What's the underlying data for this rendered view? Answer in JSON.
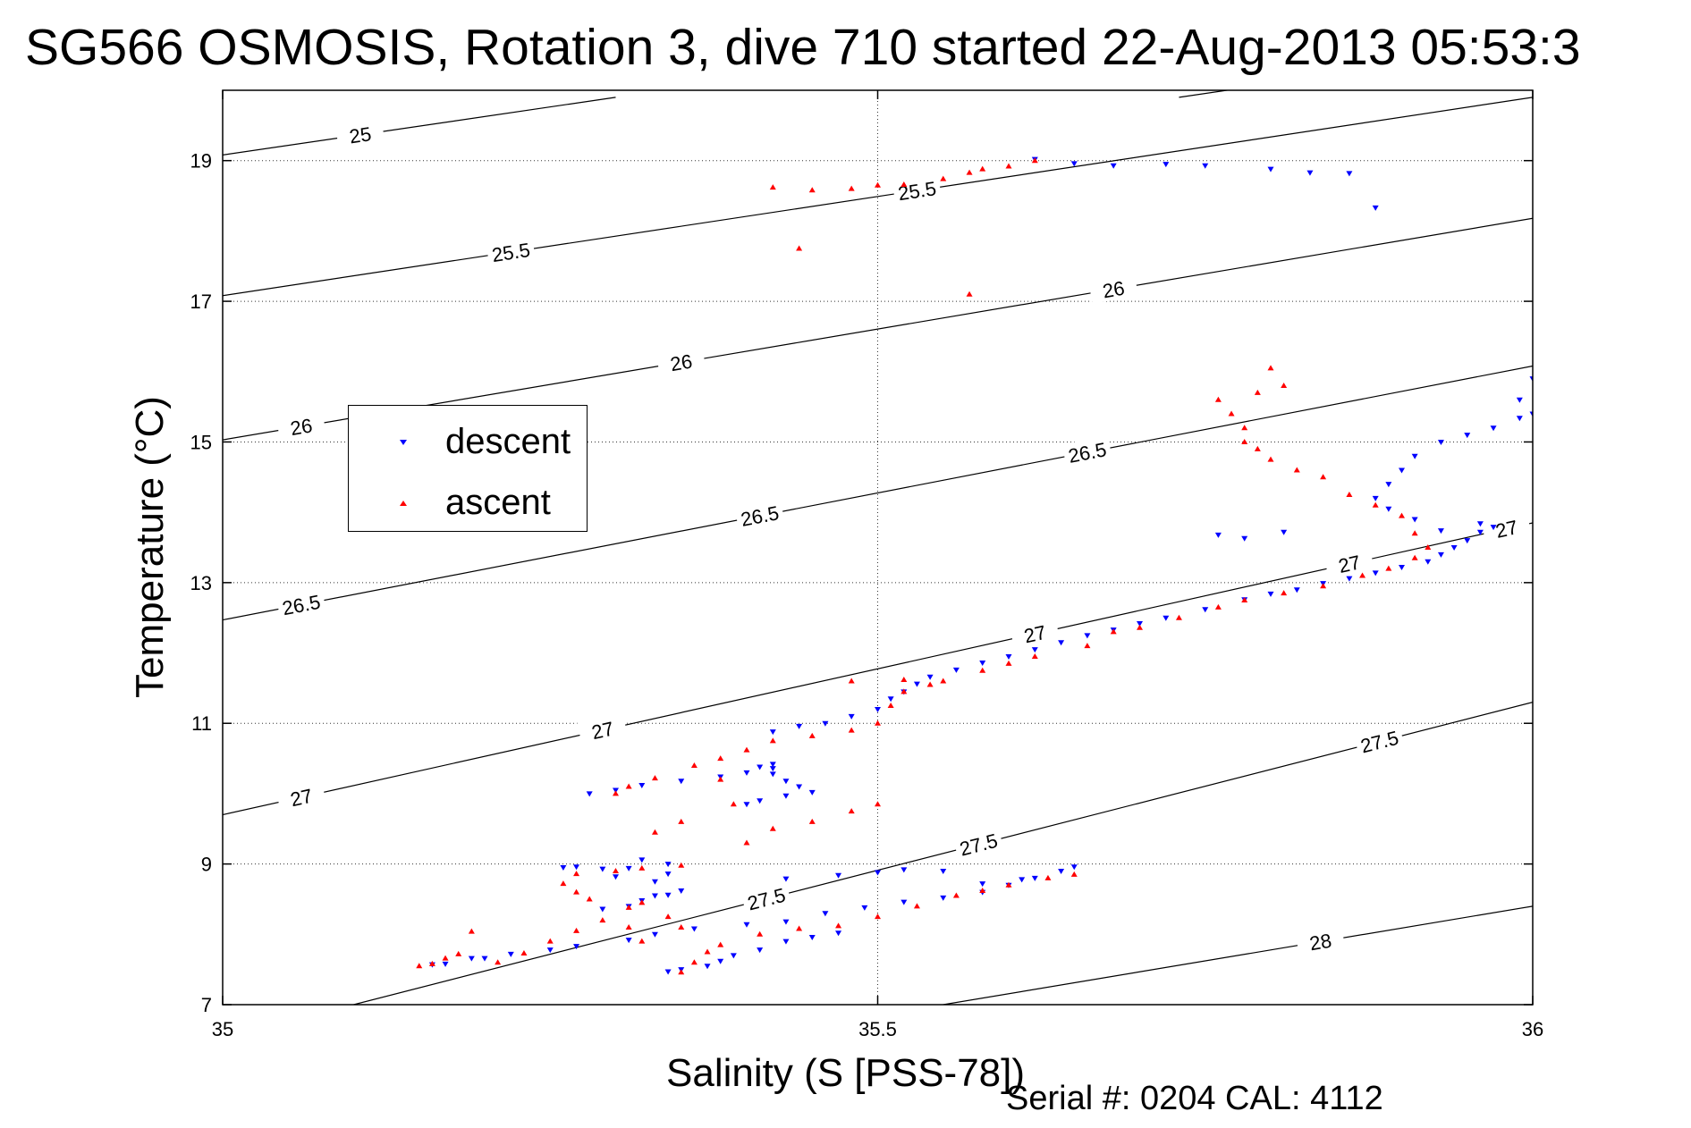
{
  "chart_data": {
    "type": "scatter",
    "title": "SG566 OSMOSIS, Rotation 3, dive 710 started 22-Aug-2013 05:53:3",
    "xlabel": "Salinity (S [PSS-78])",
    "ylabel": "Temperature (°C)",
    "xlim": [
      35,
      36
    ],
    "ylim": [
      7,
      20
    ],
    "xticks": [
      "35",
      "35.5",
      "36"
    ],
    "yticks": [
      "7",
      "9",
      "11",
      "13",
      "15",
      "17",
      "19"
    ],
    "grid": true,
    "legend_position": "left-middle",
    "footer": "Serial #: 0204  CAL: 4112",
    "contour_labels": [
      "25",
      "25.5",
      "26",
      "26.5",
      "27",
      "27.5",
      "28"
    ],
    "contours": [
      {
        "label": "25",
        "points": [
          [
            35.0,
            19.08
          ],
          [
            35.3,
            19.9
          ]
        ]
      },
      {
        "label": "25.5",
        "points": [
          [
            35.0,
            17.08
          ],
          [
            36.0,
            19.9
          ]
        ]
      },
      {
        "label": "25.5",
        "points": [
          [
            35.73,
            19.9
          ],
          [
            35.84,
            20.2
          ]
        ]
      },
      {
        "label": "26",
        "points": [
          [
            35.0,
            15.03
          ],
          [
            36.0,
            18.18
          ]
        ]
      },
      {
        "label": "26.5",
        "points": [
          [
            35.0,
            12.47
          ],
          [
            36.0,
            16.08
          ]
        ]
      },
      {
        "label": "27",
        "points": [
          [
            35.0,
            9.7
          ],
          [
            36.0,
            13.85
          ]
        ]
      },
      {
        "label": "27.5",
        "points": [
          [
            35.1,
            7.0
          ],
          [
            36.0,
            11.3
          ]
        ]
      },
      {
        "label": "28",
        "points": [
          [
            35.55,
            7.0
          ],
          [
            36.0,
            8.4
          ]
        ]
      }
    ],
    "series": [
      {
        "name": "descent",
        "color": "#0000ff",
        "marker": "triangle-down",
        "points": [
          [
            35.16,
            7.57
          ],
          [
            35.17,
            7.58
          ],
          [
            35.19,
            7.66
          ],
          [
            35.2,
            7.66
          ],
          [
            35.22,
            7.72
          ],
          [
            35.25,
            7.78
          ],
          [
            35.27,
            7.83
          ],
          [
            35.31,
            7.92
          ],
          [
            35.33,
            8.0
          ],
          [
            35.36,
            8.08
          ],
          [
            35.4,
            8.14
          ],
          [
            35.43,
            8.18
          ],
          [
            35.46,
            8.3
          ],
          [
            35.49,
            8.38
          ],
          [
            35.52,
            8.46
          ],
          [
            35.55,
            8.52
          ],
          [
            35.58,
            8.6
          ],
          [
            35.6,
            8.7
          ],
          [
            35.62,
            8.8
          ],
          [
            35.64,
            8.9
          ],
          [
            35.65,
            8.96
          ],
          [
            35.61,
            8.78
          ],
          [
            35.58,
            8.72
          ],
          [
            35.55,
            8.9
          ],
          [
            35.52,
            8.92
          ],
          [
            35.5,
            8.88
          ],
          [
            35.47,
            8.84
          ],
          [
            35.43,
            8.79
          ],
          [
            35.35,
            8.62
          ],
          [
            35.33,
            8.55
          ],
          [
            35.34,
            7.47
          ],
          [
            35.35,
            7.5
          ],
          [
            35.37,
            7.55
          ],
          [
            35.38,
            7.62
          ],
          [
            35.39,
            7.7
          ],
          [
            35.41,
            7.78
          ],
          [
            35.43,
            7.9
          ],
          [
            35.45,
            7.96
          ],
          [
            35.47,
            8.02
          ],
          [
            35.29,
            8.36
          ],
          [
            35.31,
            8.4
          ],
          [
            35.32,
            8.48
          ],
          [
            35.34,
            8.56
          ],
          [
            35.33,
            8.75
          ],
          [
            35.34,
            8.86
          ],
          [
            35.34,
            9.0
          ],
          [
            35.32,
            9.06
          ],
          [
            35.31,
            8.94
          ],
          [
            35.3,
            8.82
          ],
          [
            35.29,
            8.93
          ],
          [
            35.27,
            8.96
          ],
          [
            35.26,
            8.95
          ],
          [
            35.28,
            10.0
          ],
          [
            35.3,
            10.05
          ],
          [
            35.32,
            10.12
          ],
          [
            35.35,
            10.18
          ],
          [
            35.38,
            10.24
          ],
          [
            35.4,
            10.3
          ],
          [
            35.41,
            10.38
          ],
          [
            35.42,
            10.42
          ],
          [
            35.42,
            10.28
          ],
          [
            35.43,
            10.18
          ],
          [
            35.44,
            10.1
          ],
          [
            35.45,
            10.02
          ],
          [
            35.43,
            9.97
          ],
          [
            35.41,
            9.9
          ],
          [
            35.4,
            9.85
          ],
          [
            35.42,
            10.36
          ],
          [
            35.42,
            10.88
          ],
          [
            35.44,
            10.96
          ],
          [
            35.46,
            11.0
          ],
          [
            35.48,
            11.1
          ],
          [
            35.5,
            11.2
          ],
          [
            35.51,
            11.35
          ],
          [
            35.52,
            11.45
          ],
          [
            35.53,
            11.56
          ],
          [
            35.54,
            11.66
          ],
          [
            35.56,
            11.76
          ],
          [
            35.58,
            11.86
          ],
          [
            35.6,
            11.95
          ],
          [
            35.62,
            12.05
          ],
          [
            35.64,
            12.15
          ],
          [
            35.66,
            12.25
          ],
          [
            35.68,
            12.33
          ],
          [
            35.7,
            12.42
          ],
          [
            35.72,
            12.5
          ],
          [
            35.75,
            12.62
          ],
          [
            35.78,
            12.76
          ],
          [
            35.8,
            12.84
          ],
          [
            35.82,
            12.9
          ],
          [
            35.84,
            12.99
          ],
          [
            35.86,
            13.06
          ],
          [
            35.88,
            13.14
          ],
          [
            35.9,
            13.22
          ],
          [
            35.92,
            13.3
          ],
          [
            35.93,
            13.4
          ],
          [
            35.94,
            13.5
          ],
          [
            35.95,
            13.6
          ],
          [
            35.96,
            13.72
          ],
          [
            35.97,
            13.79
          ],
          [
            35.96,
            13.84
          ],
          [
            35.93,
            13.74
          ],
          [
            35.91,
            13.9
          ],
          [
            35.89,
            14.05
          ],
          [
            35.88,
            14.2
          ],
          [
            35.89,
            14.4
          ],
          [
            35.9,
            14.6
          ],
          [
            35.91,
            14.8
          ],
          [
            35.93,
            15.0
          ],
          [
            35.95,
            15.1
          ],
          [
            35.97,
            15.2
          ],
          [
            35.99,
            15.34
          ],
          [
            36.0,
            15.4
          ],
          [
            35.99,
            15.6
          ],
          [
            36.0,
            15.9
          ],
          [
            35.76,
            13.68
          ],
          [
            35.78,
            13.63
          ],
          [
            35.81,
            13.72
          ],
          [
            35.62,
            19.02
          ],
          [
            35.65,
            18.96
          ],
          [
            35.68,
            18.93
          ],
          [
            35.72,
            18.95
          ],
          [
            35.75,
            18.93
          ],
          [
            35.8,
            18.88
          ],
          [
            35.83,
            18.83
          ],
          [
            35.86,
            18.82
          ],
          [
            35.88,
            18.33
          ]
        ]
      },
      {
        "name": "ascent",
        "color": "#ff0000",
        "marker": "triangle-up",
        "points": [
          [
            35.15,
            7.55
          ],
          [
            35.16,
            7.58
          ],
          [
            35.17,
            7.66
          ],
          [
            35.18,
            7.72
          ],
          [
            35.19,
            8.04
          ],
          [
            35.21,
            7.6
          ],
          [
            35.23,
            7.73
          ],
          [
            35.25,
            7.9
          ],
          [
            35.27,
            8.05
          ],
          [
            35.29,
            8.2
          ],
          [
            35.31,
            8.38
          ],
          [
            35.28,
            8.5
          ],
          [
            35.27,
            8.6
          ],
          [
            35.26,
            8.72
          ],
          [
            35.27,
            8.86
          ],
          [
            35.3,
            8.9
          ],
          [
            35.32,
            8.94
          ],
          [
            35.35,
            8.98
          ],
          [
            35.32,
            8.45
          ],
          [
            35.34,
            8.25
          ],
          [
            35.35,
            8.1
          ],
          [
            35.35,
            7.46
          ],
          [
            35.36,
            7.6
          ],
          [
            35.37,
            7.75
          ],
          [
            35.38,
            7.85
          ],
          [
            35.41,
            8.0
          ],
          [
            35.44,
            8.08
          ],
          [
            35.47,
            8.12
          ],
          [
            35.5,
            8.25
          ],
          [
            35.53,
            8.4
          ],
          [
            35.56,
            8.55
          ],
          [
            35.58,
            8.62
          ],
          [
            35.6,
            8.7
          ],
          [
            35.63,
            8.8
          ],
          [
            35.65,
            8.85
          ],
          [
            35.31,
            8.1
          ],
          [
            35.32,
            7.9
          ],
          [
            35.3,
            10.0
          ],
          [
            35.31,
            10.1
          ],
          [
            35.33,
            10.22
          ],
          [
            35.36,
            10.4
          ],
          [
            35.38,
            10.5
          ],
          [
            35.4,
            10.62
          ],
          [
            35.42,
            10.75
          ],
          [
            35.45,
            10.82
          ],
          [
            35.48,
            10.9
          ],
          [
            35.5,
            11.0
          ],
          [
            35.51,
            11.25
          ],
          [
            35.52,
            11.45
          ],
          [
            35.54,
            11.55
          ],
          [
            35.58,
            11.75
          ],
          [
            35.6,
            11.85
          ],
          [
            35.62,
            11.95
          ],
          [
            35.66,
            12.1
          ],
          [
            35.68,
            12.3
          ],
          [
            35.7,
            12.36
          ],
          [
            35.73,
            12.5
          ],
          [
            35.76,
            12.65
          ],
          [
            35.78,
            12.75
          ],
          [
            35.81,
            12.85
          ],
          [
            35.84,
            12.95
          ],
          [
            35.87,
            13.1
          ],
          [
            35.89,
            13.2
          ],
          [
            35.91,
            13.35
          ],
          [
            35.92,
            13.5
          ],
          [
            35.91,
            13.7
          ],
          [
            35.9,
            13.95
          ],
          [
            35.88,
            14.1
          ],
          [
            35.86,
            14.25
          ],
          [
            35.84,
            14.5
          ],
          [
            35.82,
            14.6
          ],
          [
            35.8,
            14.75
          ],
          [
            35.79,
            14.9
          ],
          [
            35.78,
            15.0
          ],
          [
            35.78,
            15.2
          ],
          [
            35.77,
            15.4
          ],
          [
            35.76,
            15.6
          ],
          [
            35.79,
            15.7
          ],
          [
            35.81,
            15.8
          ],
          [
            35.8,
            16.05
          ],
          [
            35.48,
            11.6
          ],
          [
            35.52,
            11.62
          ],
          [
            35.55,
            11.6
          ],
          [
            35.38,
            10.2
          ],
          [
            35.39,
            9.85
          ],
          [
            35.35,
            9.6
          ],
          [
            35.33,
            9.45
          ],
          [
            35.4,
            9.3
          ],
          [
            35.42,
            9.5
          ],
          [
            35.45,
            9.6
          ],
          [
            35.48,
            9.75
          ],
          [
            35.5,
            9.85
          ],
          [
            35.45,
            18.58
          ],
          [
            35.48,
            18.6
          ],
          [
            35.5,
            18.65
          ],
          [
            35.52,
            18.66
          ],
          [
            35.55,
            18.74
          ],
          [
            35.57,
            18.83
          ],
          [
            35.58,
            18.88
          ],
          [
            35.6,
            18.92
          ],
          [
            35.62,
            19.0
          ],
          [
            35.42,
            18.62
          ],
          [
            35.44,
            17.75
          ],
          [
            35.57,
            17.1
          ]
        ]
      }
    ]
  },
  "legend": {
    "items": [
      {
        "label": "descent",
        "color": "#0000ff"
      },
      {
        "label": "ascent",
        "color": "#ff0000"
      }
    ]
  }
}
